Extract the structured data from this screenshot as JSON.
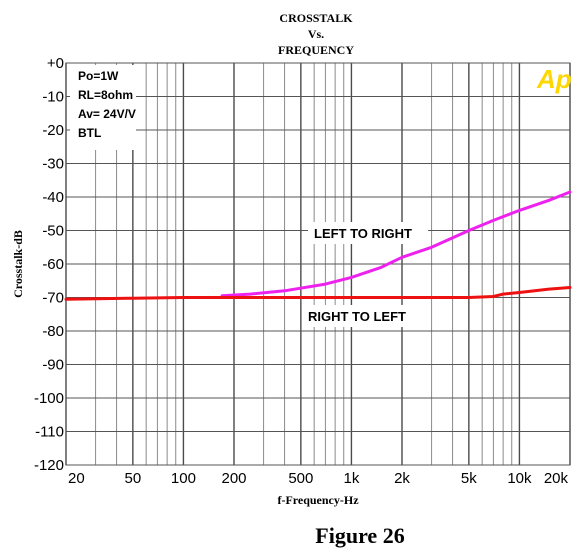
{
  "chart_data": {
    "type": "line",
    "title_lines": [
      "CROSSTALK",
      "Vs.",
      "FREQUENCY"
    ],
    "xlabel": "f-Frequency-Hz",
    "ylabel": "Crosstalk-dB",
    "x_scale": "log",
    "xlim": [
      20,
      20000
    ],
    "ylim": [
      -120,
      0
    ],
    "x_ticks": [
      {
        "value": 20,
        "label": "20"
      },
      {
        "value": 50,
        "label": "50"
      },
      {
        "value": 100,
        "label": "100"
      },
      {
        "value": 200,
        "label": "200"
      },
      {
        "value": 500,
        "label": "500"
      },
      {
        "value": 1000,
        "label": "1k"
      },
      {
        "value": 2000,
        "label": "2k"
      },
      {
        "value": 5000,
        "label": "5k"
      },
      {
        "value": 10000,
        "label": "10k"
      },
      {
        "value": 20000,
        "label": "20k"
      }
    ],
    "y_ticks": [
      {
        "value": 0,
        "label": "+0"
      },
      {
        "value": -10,
        "label": "-10"
      },
      {
        "value": -20,
        "label": "-20"
      },
      {
        "value": -30,
        "label": "-30"
      },
      {
        "value": -40,
        "label": "-40"
      },
      {
        "value": -50,
        "label": "-50"
      },
      {
        "value": -60,
        "label": "-60"
      },
      {
        "value": -70,
        "label": "-70"
      },
      {
        "value": -80,
        "label": "-80"
      },
      {
        "value": -90,
        "label": "-90"
      },
      {
        "value": -100,
        "label": "-100"
      },
      {
        "value": -110,
        "label": "-110"
      },
      {
        "value": -120,
        "label": "-120"
      }
    ],
    "grid": true,
    "series": [
      {
        "name": "LEFT TO RIGHT",
        "color": "#ee22ee",
        "x": [
          170,
          250,
          400,
          700,
          1000,
          1500,
          2000,
          3000,
          5000,
          7000,
          10000,
          15000,
          20000
        ],
        "y": [
          -69.5,
          -69,
          -68,
          -66,
          -64,
          -61,
          -58,
          -55,
          -50,
          -47,
          -44,
          -41,
          -38.5
        ]
      },
      {
        "name": "RIGHT TO LEFT",
        "color": "#ee1111",
        "x": [
          20,
          50,
          100,
          200,
          500,
          1000,
          2000,
          5000,
          7000,
          8000,
          10000,
          15000,
          20000
        ],
        "y": [
          -70.5,
          -70.2,
          -70,
          -70,
          -70,
          -70,
          -70,
          -70,
          -69.7,
          -69,
          -68.5,
          -67.5,
          -67
        ]
      }
    ],
    "annotation": [
      "Po=1W",
      "RL=8ohm",
      "Av= 24V/V",
      "BTL"
    ],
    "logo": "Ap"
  },
  "caption": "Figure 26"
}
